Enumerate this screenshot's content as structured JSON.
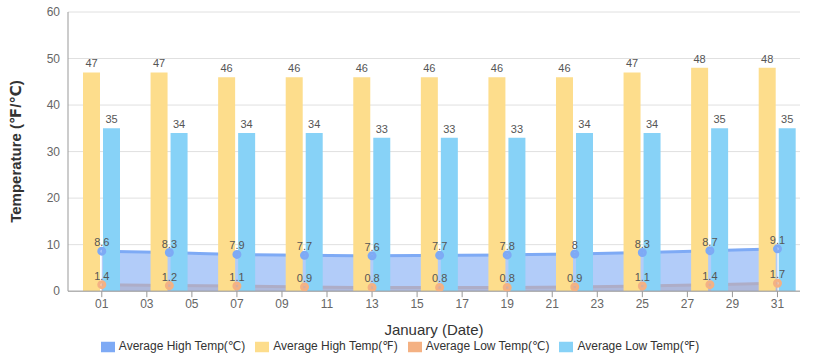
{
  "chart_data": {
    "type": "bar",
    "x_label": "January (Date)",
    "y_label": "Temperature (℉/℃)",
    "x": [
      1,
      4,
      7,
      10,
      13,
      16,
      19,
      22,
      25,
      28,
      31
    ],
    "xlim": [
      -0.5,
      32
    ],
    "xticks": [
      {
        "value": 1,
        "label": "01"
      },
      {
        "value": 3,
        "label": "03"
      },
      {
        "value": 5,
        "label": "05"
      },
      {
        "value": 7,
        "label": "07"
      },
      {
        "value": 9,
        "label": "09"
      },
      11,
      13,
      15,
      17,
      19,
      21,
      23,
      25,
      27,
      29,
      31
    ],
    "ylim": [
      0,
      60
    ],
    "yticks": [
      0,
      10,
      20,
      30,
      40,
      50,
      60
    ],
    "grid": true,
    "legend": "bottom",
    "data_labels": true,
    "series": [
      {
        "name": "Average High Temp(℉)",
        "type": "bar",
        "color": "#fddd8c",
        "values": [
          47,
          47,
          46,
          46,
          46,
          46,
          46,
          46,
          47,
          48,
          48
        ]
      },
      {
        "name": "Average Low Temp(℉)",
        "type": "bar",
        "color": "#87d2f7",
        "values": [
          35,
          34,
          34,
          34,
          33,
          33,
          33,
          34,
          34,
          35,
          35
        ]
      },
      {
        "name": "Average Low Temp(℃)",
        "type": "area",
        "marker": "circle",
        "color": "#f4b183",
        "values": [
          1.4,
          1.2,
          1.1,
          0.9,
          0.8,
          0.8,
          0.8,
          0.9,
          1.1,
          1.4,
          1.7
        ]
      },
      {
        "name": "Average High Temp(℃)",
        "type": "area",
        "marker": "circle",
        "color": "#7eaaf5",
        "values": [
          8.6,
          8.3,
          7.9,
          7.7,
          7.6,
          7.7,
          7.8,
          8,
          8.3,
          8.7,
          9.1
        ]
      }
    ]
  }
}
